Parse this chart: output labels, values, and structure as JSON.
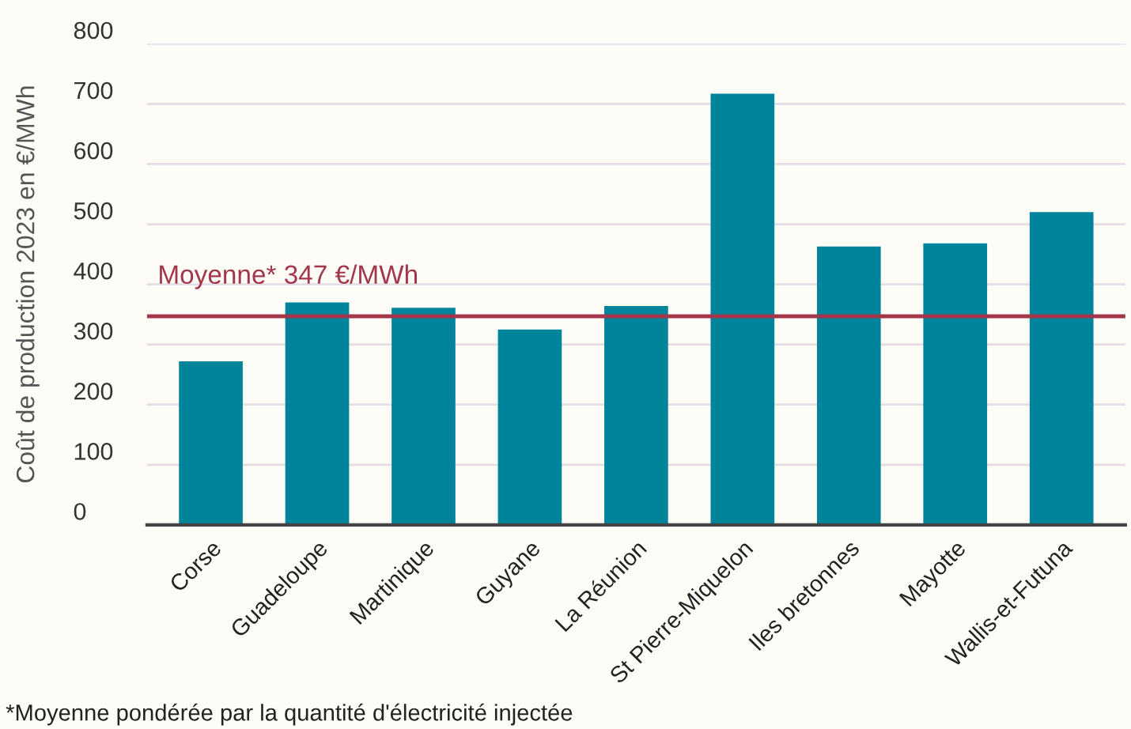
{
  "chart_data": {
    "type": "bar",
    "ylabel": "Coût de production 2023 en €/MWh",
    "categories": [
      "Corse",
      "Guadeloupe",
      "Martinique",
      "Guyane",
      "La Réunion",
      "St Pierre-Miquelon",
      "Iles bretonnes",
      "Mayotte",
      "Wallis-et-Futuna"
    ],
    "values": [
      272,
      370,
      361,
      325,
      364,
      717,
      463,
      468,
      520
    ],
    "color": "#00849b",
    "ylim": [
      0,
      800
    ],
    "yticks": [
      0,
      100,
      200,
      300,
      400,
      500,
      600,
      700,
      800
    ],
    "grid": "y",
    "legend": false,
    "ref_lines": [
      {
        "axis": "y",
        "value": 347,
        "label": "Moyenne* 347 €/MWh",
        "color": "#a3364a"
      }
    ],
    "annotations": [
      "*Moyenne pondérée par la quantité d'électricité injectée"
    ]
  }
}
